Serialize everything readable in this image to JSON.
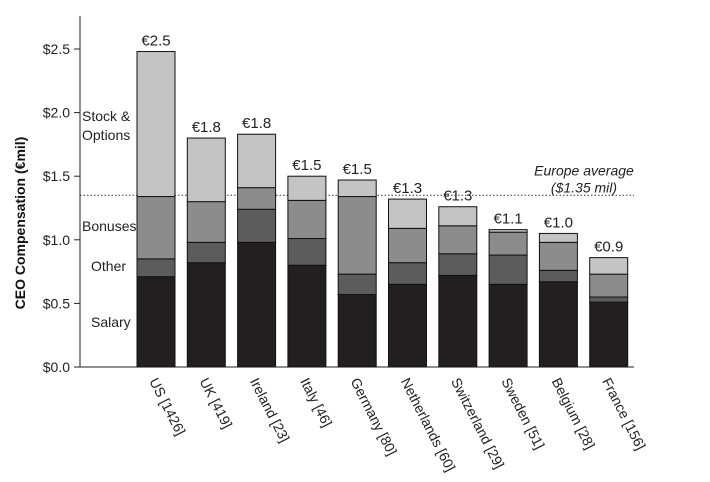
{
  "chart_data": {
    "type": "bar",
    "stacked": true,
    "ylabel": "CEO Compensation (€mil)",
    "ylim": [
      0,
      2.5
    ],
    "yticks": [
      "$0.0",
      "$0.5",
      "$1.0",
      "$1.5",
      "$2.0",
      "$2.5"
    ],
    "categories": [
      "US [1426]",
      "UK [419]",
      "Ireland [23]",
      "Italy [46]",
      "Germany [80]",
      "Netherlands [60]",
      "Switzerland [29]",
      "Sweden [51]",
      "Belgium [28]",
      "France [156]"
    ],
    "value_labels": [
      "€2.5",
      "€1.8",
      "€1.8",
      "€1.5",
      "€1.5",
      "€1.3",
      "€1.3",
      "€1.1",
      "€1.0",
      "€0.9"
    ],
    "series": [
      {
        "name": "Salary",
        "color": "#231f20",
        "values": [
          0.71,
          0.82,
          0.98,
          0.8,
          0.57,
          0.65,
          0.72,
          0.65,
          0.67,
          0.51
        ]
      },
      {
        "name": "Other",
        "color": "#5c5c5c",
        "values": [
          0.14,
          0.16,
          0.26,
          0.21,
          0.16,
          0.17,
          0.17,
          0.23,
          0.09,
          0.04
        ]
      },
      {
        "name": "Bonuses",
        "color": "#8c8c8c",
        "values": [
          0.49,
          0.32,
          0.17,
          0.3,
          0.61,
          0.27,
          0.22,
          0.18,
          0.22,
          0.18
        ]
      },
      {
        "name": "Stock & Options",
        "color": "#c4c4c4",
        "values": [
          1.14,
          0.5,
          0.42,
          0.19,
          0.13,
          0.23,
          0.15,
          0.02,
          0.07,
          0.13
        ]
      }
    ],
    "reference_line": {
      "value": 1.35,
      "label_line1": "Europe average",
      "label_line2": "($1.35 mil)"
    },
    "segment_labels": {
      "stock": [
        "Stock &",
        "Options"
      ],
      "bonuses": "Bonuses",
      "other": "Other",
      "salary": "Salary"
    }
  }
}
